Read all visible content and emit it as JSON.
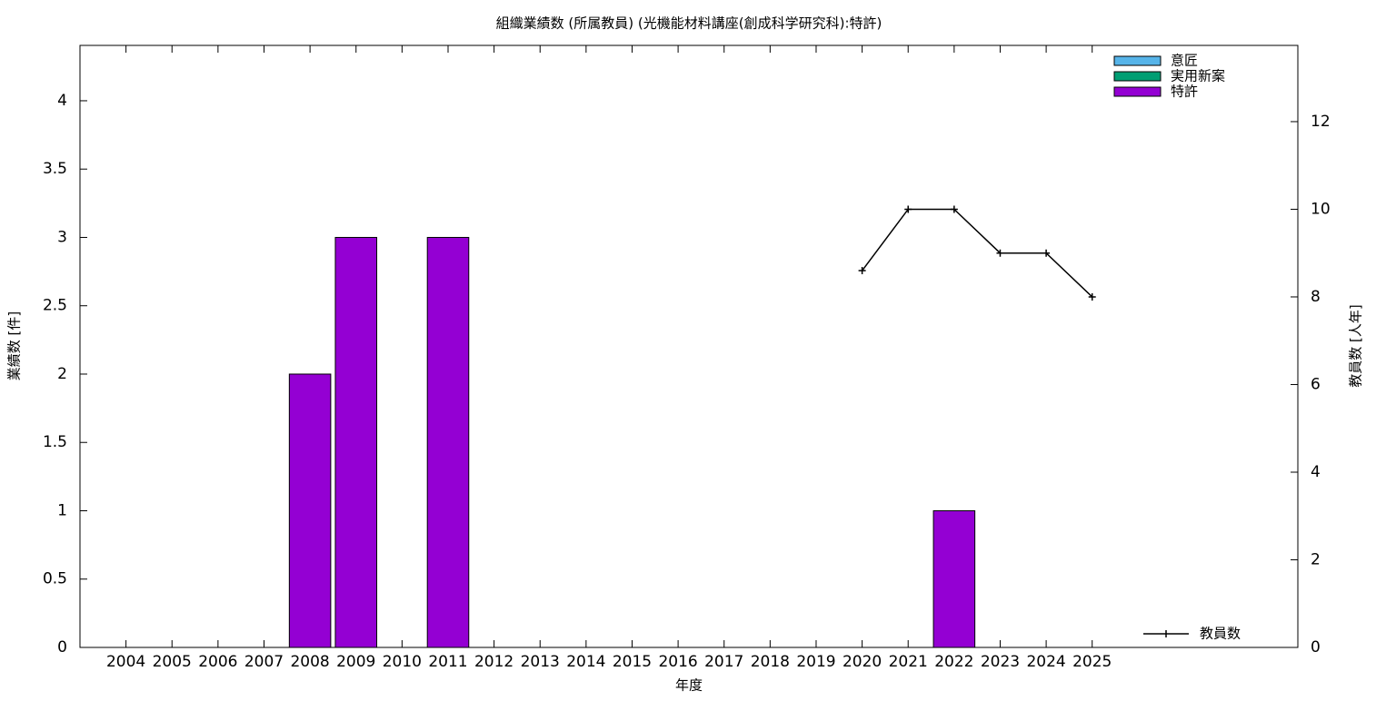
{
  "chart_data": {
    "type": "bar",
    "title": "組織業績数 (所属教員) (光機能材料講座(創成科学研究科):特許)",
    "xlabel": "年度",
    "ylabel": "業績数 [件]",
    "y2label": "教員数 [人年]",
    "x": [
      2004,
      2005,
      2006,
      2007,
      2008,
      2009,
      2010,
      2011,
      2012,
      2013,
      2014,
      2015,
      2016,
      2017,
      2018,
      2019,
      2020,
      2021,
      2022,
      2023,
      2024,
      2025
    ],
    "xlim": [
      2003,
      2029.47
    ],
    "xticks": [
      2004,
      2005,
      2006,
      2007,
      2008,
      2009,
      2010,
      2011,
      2012,
      2013,
      2014,
      2015,
      2016,
      2017,
      2018,
      2019,
      2020,
      2021,
      2022,
      2023,
      2024,
      2025
    ],
    "ylim": [
      0,
      4.405
    ],
    "yticks": [
      0,
      0.5,
      1,
      1.5,
      2,
      2.5,
      3,
      3.5,
      4
    ],
    "y2lim": [
      0,
      13.74
    ],
    "y2ticks": [
      0,
      2,
      4,
      6,
      8,
      10,
      12
    ],
    "stacked": true,
    "bar_legend": "top-right",
    "line_legend": "bottom-right",
    "series": [
      {
        "name": "意匠",
        "type": "bar",
        "color": "#56b4e9",
        "values": [
          0,
          0,
          0,
          0,
          0,
          0,
          0,
          0,
          0,
          0,
          0,
          0,
          0,
          0,
          0,
          0,
          0,
          0,
          0,
          0,
          0,
          0
        ]
      },
      {
        "name": "実用新案",
        "type": "bar",
        "color": "#009e73",
        "values": [
          0,
          0,
          0,
          0,
          0,
          0,
          0,
          0,
          0,
          0,
          0,
          0,
          0,
          0,
          0,
          0,
          0,
          0,
          0,
          0,
          0,
          0
        ]
      },
      {
        "name": "特許",
        "type": "bar",
        "color": "#9400d3",
        "values": [
          0,
          0,
          0,
          0,
          2,
          3,
          0,
          3,
          0,
          0,
          0,
          0,
          0,
          0,
          0,
          0,
          0,
          0,
          1,
          0,
          0,
          0
        ]
      },
      {
        "name": "教員数",
        "type": "line",
        "axis": "y2",
        "color": "#000000",
        "values": [
          null,
          null,
          null,
          null,
          null,
          null,
          null,
          null,
          null,
          null,
          null,
          null,
          null,
          null,
          null,
          null,
          8.6,
          10,
          10,
          9,
          9,
          8
        ]
      }
    ]
  }
}
